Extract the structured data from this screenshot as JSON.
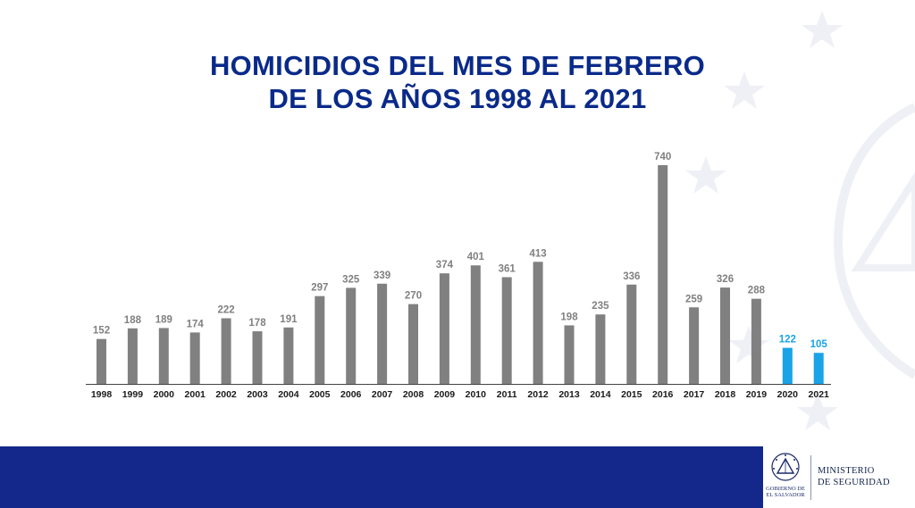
{
  "title": {
    "line1": "HOMICIDIOS DEL MES DE FEBRERO",
    "line2": "DE LOS AÑOS 1998 AL 2021"
  },
  "colors": {
    "title": "#0a2a8a",
    "bar_default": "#808080",
    "bar_highlight": "#1aa3e6",
    "label_default": "#808080",
    "label_highlight": "#1aa3e6",
    "footer": "#13288a"
  },
  "chart_data": {
    "type": "bar",
    "categories": [
      "1998",
      "1999",
      "2000",
      "2001",
      "2002",
      "2003",
      "2004",
      "2005",
      "2006",
      "2007",
      "2008",
      "2009",
      "2010",
      "2011",
      "2012",
      "2013",
      "2014",
      "2015",
      "2016",
      "2017",
      "2018",
      "2019",
      "2020",
      "2021"
    ],
    "values": [
      152,
      188,
      189,
      174,
      222,
      178,
      191,
      297,
      325,
      339,
      270,
      374,
      401,
      361,
      413,
      198,
      235,
      336,
      740,
      259,
      326,
      288,
      122,
      105
    ],
    "highlighted": [
      "2020",
      "2021"
    ],
    "ylim": [
      0,
      740
    ],
    "grid": false,
    "legend": "none"
  },
  "footer": {
    "gov_line1": "GOBIERNO DE",
    "gov_line2": "EL SALVADOR",
    "ministry_line1": "MINISTERIO",
    "ministry_line2": "DE SEGURIDAD"
  }
}
